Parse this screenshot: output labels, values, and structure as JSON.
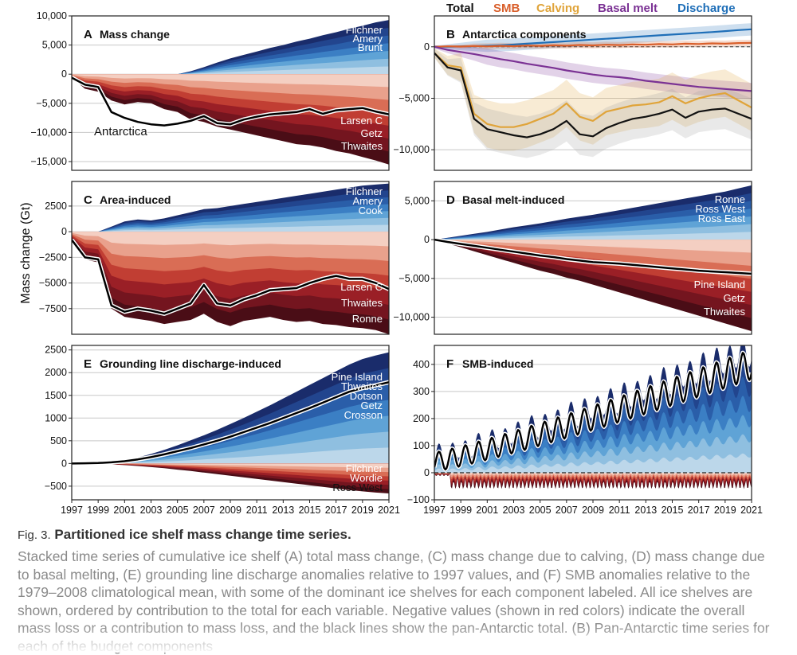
{
  "chart_data": [
    {
      "id": "A",
      "type": "area",
      "title_letter": "A",
      "title": "Mass change",
      "ylim": [
        -16500,
        10000
      ],
      "yticks": [
        10000,
        5000,
        0,
        -5000,
        -10000,
        -15000
      ],
      "yticklabels": [
        "10,000",
        "5,000",
        "0",
        "−5,000",
        "−10,000",
        "−15,000"
      ],
      "x": [
        1997,
        1998,
        1999,
        2000,
        2001,
        2002,
        2003,
        2004,
        2005,
        2006,
        2007,
        2008,
        2009,
        2010,
        2011,
        2012,
        2013,
        2014,
        2015,
        2016,
        2017,
        2018,
        2019,
        2020,
        2021
      ],
      "positive_total": [
        0,
        0,
        0,
        0,
        0,
        0,
        0,
        0,
        0,
        500,
        1200,
        2000,
        2700,
        3300,
        3900,
        4500,
        5000,
        5600,
        6100,
        6700,
        7200,
        7800,
        8300,
        8900,
        9300
      ],
      "negative_total": [
        -600,
        -2500,
        -3000,
        -4500,
        -5200,
        -4800,
        -5000,
        -6000,
        -6500,
        -7800,
        -8200,
        -9000,
        -9500,
        -10000,
        -10500,
        -11000,
        -11500,
        -12000,
        -12200,
        -12600,
        -13200,
        -13600,
        -14200,
        -14800,
        -15500
      ],
      "total": [
        -600,
        -1800,
        -2200,
        -6500,
        -7500,
        -8200,
        -8600,
        -8800,
        -8500,
        -8000,
        -7200,
        -8400,
        -8600,
        -7800,
        -7300,
        -6900,
        -6700,
        -6500,
        -6000,
        -6800,
        -6200,
        -6000,
        -5800,
        -6400,
        -6900
      ],
      "total_label": "Antarctica",
      "top_labels": [
        "Filchner",
        "Amery",
        "Brunt"
      ],
      "bottom_labels": [
        "Larsen C",
        "Getz",
        "Thwaites"
      ]
    },
    {
      "id": "B",
      "type": "line",
      "title_letter": "B",
      "title": "Antarctica components",
      "ylim": [
        -12000,
        3000
      ],
      "yticks": [
        0,
        -5000,
        -10000
      ],
      "yticklabels": [
        "0",
        "−5,000",
        "−10,000"
      ],
      "x": [
        1997,
        1998,
        1999,
        2000,
        2001,
        2002,
        2003,
        2004,
        2005,
        2006,
        2007,
        2008,
        2009,
        2010,
        2011,
        2012,
        2013,
        2014,
        2015,
        2016,
        2017,
        2018,
        2019,
        2020,
        2021
      ],
      "legend": [
        "Total",
        "SMB",
        "Calving",
        "Basal melt",
        "Discharge"
      ],
      "series": [
        {
          "name": "Discharge",
          "color": "#1f6fb8",
          "band": 600,
          "values": [
            0,
            10,
            30,
            60,
            100,
            150,
            220,
            300,
            380,
            460,
            540,
            620,
            700,
            780,
            860,
            950,
            1030,
            1110,
            1190,
            1270,
            1350,
            1430,
            1520,
            1620,
            1700
          ]
        },
        {
          "name": "SMB",
          "color": "#d95f2b",
          "band": 300,
          "values": [
            0,
            50,
            20,
            80,
            40,
            90,
            60,
            120,
            90,
            150,
            110,
            180,
            140,
            200,
            170,
            230,
            200,
            260,
            230,
            300,
            270,
            330,
            300,
            360,
            380
          ]
        },
        {
          "name": "Basal melt",
          "color": "#7b3294",
          "band": 800,
          "values": [
            0,
            -300,
            -500,
            -700,
            -950,
            -1200,
            -1400,
            -1650,
            -1850,
            -2050,
            -2300,
            -2500,
            -2700,
            -2850,
            -2950,
            -3100,
            -3300,
            -3450,
            -3600,
            -3750,
            -3900,
            -4000,
            -4100,
            -4200,
            -4300
          ]
        },
        {
          "name": "Calving",
          "color": "#e0a43a",
          "band": 2300,
          "values": [
            -600,
            -1800,
            -2000,
            -6500,
            -7500,
            -7800,
            -7800,
            -7500,
            -7000,
            -6500,
            -5500,
            -6800,
            -7200,
            -6300,
            -6000,
            -5700,
            -5600,
            -5400,
            -4800,
            -5500,
            -5000,
            -4700,
            -4500,
            -5200,
            -5900
          ]
        },
        {
          "name": "Total",
          "color": "#111111",
          "band": 2000,
          "values": [
            -600,
            -2000,
            -2300,
            -7000,
            -8000,
            -8300,
            -8600,
            -8800,
            -8500,
            -8000,
            -7200,
            -8500,
            -8700,
            -7900,
            -7400,
            -7000,
            -6800,
            -6500,
            -6100,
            -6900,
            -6300,
            -6100,
            -6000,
            -6500,
            -7000
          ]
        }
      ]
    },
    {
      "id": "C",
      "type": "area",
      "title_letter": "C",
      "title": "Area-induced",
      "ylim": [
        -10000,
        4900
      ],
      "yticks": [
        2500,
        0,
        -2500,
        -5000,
        -7500
      ],
      "yticklabels": [
        "2500",
        "0",
        "−2500",
        "−5000",
        "−7500"
      ],
      "x": [
        1997,
        1998,
        1999,
        2000,
        2001,
        2002,
        2003,
        2004,
        2005,
        2006,
        2007,
        2008,
        2009,
        2010,
        2011,
        2012,
        2013,
        2014,
        2015,
        2016,
        2017,
        2018,
        2019,
        2020,
        2021
      ],
      "positive_total": [
        0,
        0,
        0,
        500,
        1000,
        1200,
        1100,
        1300,
        1600,
        1900,
        2200,
        2300,
        2500,
        2700,
        2900,
        3100,
        3300,
        3500,
        3700,
        3900,
        4100,
        4300,
        4500,
        4600,
        4700
      ],
      "negative_total": [
        -800,
        -2700,
        -3000,
        -7500,
        -8300,
        -8500,
        -8700,
        -9000,
        -8800,
        -8600,
        -8000,
        -8800,
        -9200,
        -8700,
        -8500,
        -8300,
        -8600,
        -8800,
        -8700,
        -9000,
        -9100,
        -9300,
        -9400,
        -9600,
        -10000
      ],
      "total": [
        -800,
        -2500,
        -2700,
        -7200,
        -7800,
        -7500,
        -7700,
        -8000,
        -7500,
        -7000,
        -5200,
        -7000,
        -7200,
        -6600,
        -6200,
        -5700,
        -5600,
        -5500,
        -5000,
        -4600,
        -4300,
        -4600,
        -4600,
        -5000,
        -5600
      ],
      "top_labels": [
        "Filchner",
        "Amery",
        "Cook"
      ],
      "bottom_labels": [
        "Larsen C",
        "Thwaites",
        "Ronne"
      ]
    },
    {
      "id": "D",
      "type": "area",
      "title_letter": "D",
      "title": "Basal melt-induced",
      "ylim": [
        -12200,
        7500
      ],
      "yticks": [
        5000,
        0,
        -5000,
        -10000
      ],
      "yticklabels": [
        "5,000",
        "0",
        "−5,000",
        "−10,000"
      ],
      "x": [
        1997,
        1998,
        1999,
        2000,
        2001,
        2002,
        2003,
        2004,
        2005,
        2006,
        2007,
        2008,
        2009,
        2010,
        2011,
        2012,
        2013,
        2014,
        2015,
        2016,
        2017,
        2018,
        2019,
        2020,
        2021
      ],
      "positive_total": [
        0,
        250,
        500,
        750,
        1000,
        1300,
        1600,
        1850,
        2100,
        2400,
        2700,
        2950,
        3200,
        3500,
        3800,
        4100,
        4400,
        4700,
        5000,
        5300,
        5600,
        5900,
        6200,
        6600,
        7000
      ],
      "negative_total": [
        0,
        -500,
        -1000,
        -1500,
        -2000,
        -2500,
        -3000,
        -3500,
        -4000,
        -4400,
        -4900,
        -5300,
        -5800,
        -6300,
        -6800,
        -7300,
        -7800,
        -8300,
        -8800,
        -9300,
        -9800,
        -10300,
        -10800,
        -11300,
        -11800
      ],
      "total": [
        0,
        -300,
        -550,
        -800,
        -1050,
        -1300,
        -1550,
        -1800,
        -2050,
        -2250,
        -2500,
        -2700,
        -2900,
        -3000,
        -3100,
        -3250,
        -3400,
        -3550,
        -3700,
        -3850,
        -4000,
        -4100,
        -4200,
        -4300,
        -4400
      ],
      "top_labels": [
        "Ronne",
        "Ross West",
        "Ross East"
      ],
      "bottom_labels": [
        "Pine Island",
        "Getz",
        "Thwaites"
      ]
    },
    {
      "id": "E",
      "type": "area",
      "title_letter": "E",
      "title": "Grounding line discharge-induced",
      "ylim": [
        -800,
        2600
      ],
      "yticks": [
        2500,
        2000,
        1500,
        1000,
        500,
        0,
        -500
      ],
      "yticklabels": [
        "2500",
        "2000",
        "1500",
        "1000",
        "500",
        "0",
        "−500"
      ],
      "x": [
        1997,
        1998,
        1999,
        2000,
        2001,
        2002,
        2003,
        2004,
        2005,
        2006,
        2007,
        2008,
        2009,
        2010,
        2011,
        2012,
        2013,
        2014,
        2015,
        2016,
        2017,
        2018,
        2019,
        2020,
        2021
      ],
      "positive_total": [
        0,
        5,
        15,
        35,
        70,
        130,
        210,
        300,
        400,
        510,
        620,
        740,
        870,
        1000,
        1140,
        1280,
        1430,
        1580,
        1730,
        1880,
        2030,
        2180,
        2300,
        2380,
        2450
      ],
      "negative_total": [
        0,
        -5,
        -10,
        -20,
        -35,
        -55,
        -80,
        -105,
        -135,
        -165,
        -200,
        -235,
        -270,
        -305,
        -340,
        -375,
        -410,
        -445,
        -480,
        -515,
        -550,
        -585,
        -615,
        -640,
        -660
      ],
      "total": [
        0,
        5,
        10,
        25,
        50,
        90,
        140,
        200,
        270,
        340,
        420,
        500,
        590,
        690,
        790,
        890,
        1000,
        1110,
        1220,
        1340,
        1460,
        1580,
        1660,
        1720,
        1790
      ],
      "top_labels": [
        "Pine Island",
        "Thwaites",
        "Dotson",
        "Getz",
        "Crosson"
      ],
      "bottom_labels": [
        "Filchner",
        "Wordie",
        "Ross West"
      ]
    },
    {
      "id": "F",
      "type": "area",
      "title_letter": "F",
      "title": "SMB-induced",
      "ylim": [
        -100,
        470
      ],
      "yticks": [
        400,
        300,
        200,
        100,
        0,
        -100
      ],
      "yticklabels": [
        "400",
        "300",
        "200",
        "100",
        "0",
        "−100"
      ],
      "x_range": [
        1997,
        2021
      ],
      "trend_start": 40,
      "trend_end": 400,
      "amp_start": 35,
      "amp_end": 55,
      "positive_offset": 55,
      "negative_depth": -60
    }
  ],
  "axes": {
    "ylabel": "Mass change (Gt)",
    "xticks": [
      "1997",
      "1999",
      "2001",
      "2003",
      "2005",
      "2007",
      "2009",
      "2011",
      "2013",
      "2015",
      "2017",
      "2019",
      "2021"
    ]
  },
  "caption": {
    "fig_num": "Fig. 3.",
    "title": "Partitioned ice shelf mass change time series.",
    "body": "Stacked time series of cumulative ice shelf (A) total mass change, (C) mass change due to calving, (D) mass change due to basal melting, (E) grounding line discharge anomalies relative to 1997 values, and (F) SMB anomalies relative to the 1979–2008 climatological mean, with some of the dominant ice shelves for each component labeled. All ice shelves are shown, ordered by contribution to the total for each variable. Negative values (shown in red colors) indicate the overall mass loss or a contribution to mass loss, and the black lines show the pan-Antarctic total. (B) Pan-Antarctic time series for each of the budget components"
  },
  "colors": {
    "blues": [
      "#bcd7ea",
      "#8fbfe0",
      "#5fa3d6",
      "#3b7fc4",
      "#2a5ea9",
      "#22458e",
      "#1a2c6b"
    ],
    "reds": [
      "#f4cfc2",
      "#e9a18c",
      "#d96d55",
      "#c13e33",
      "#9a1f26",
      "#74151f",
      "#4a0d16"
    ]
  }
}
